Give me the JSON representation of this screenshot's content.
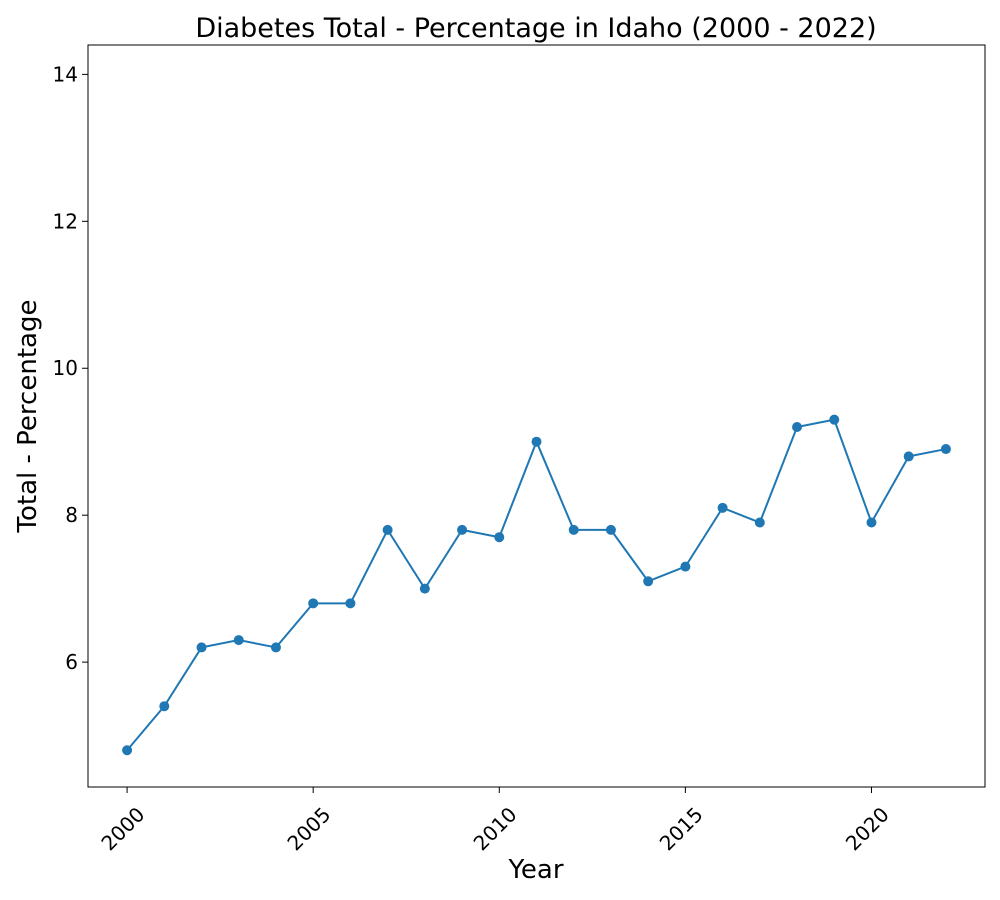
{
  "chart_data": {
    "type": "line",
    "title": "Diabetes Total - Percentage in Idaho (2000 - 2022)",
    "xlabel": "Year",
    "ylabel": "Total - Percentage",
    "x": [
      2000,
      2001,
      2002,
      2003,
      2004,
      2005,
      2006,
      2007,
      2008,
      2009,
      2010,
      2011,
      2012,
      2013,
      2014,
      2015,
      2016,
      2017,
      2018,
      2019,
      2020,
      2021,
      2022
    ],
    "series": [
      {
        "values": [
          4.8,
          5.4,
          6.2,
          6.3,
          6.2,
          6.8,
          6.8,
          7.8,
          7.0,
          7.8,
          7.7,
          9.0,
          7.8,
          7.8,
          7.1,
          7.3,
          8.1,
          7.9,
          9.2,
          9.3,
          7.9,
          8.8,
          8.9
        ],
        "color": "#1f77b4"
      }
    ],
    "xlim": [
      1998.95,
      2023.05
    ],
    "ylim": [
      4.3,
      14.4
    ],
    "x_ticks": [
      2000,
      2005,
      2010,
      2015,
      2020
    ],
    "y_ticks": [
      6,
      8,
      10,
      12,
      14
    ],
    "x_tick_rotation_deg": 45,
    "grid": false,
    "legend": false
  }
}
